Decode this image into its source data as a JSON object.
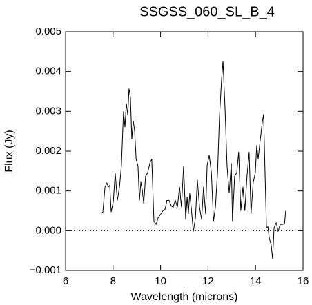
{
  "chart_data": {
    "type": "line",
    "title": "SSGSS_060_SL_B_4",
    "x_label": "Wavelength (microns)",
    "y_label": "Flux (Jy)",
    "x": [
      7.48,
      7.57,
      7.66,
      7.74,
      7.8,
      7.86,
      7.92,
      8.01,
      8.09,
      8.18,
      8.27,
      8.35,
      8.44,
      8.5,
      8.56,
      8.62,
      8.67,
      8.73,
      8.79,
      8.85,
      8.91,
      8.97,
      9.05,
      9.11,
      9.17,
      9.23,
      9.29,
      9.37,
      9.46,
      9.55,
      9.63,
      9.72,
      9.81,
      9.9,
      10.01,
      10.1,
      10.19,
      10.27,
      10.36,
      10.45,
      10.53,
      10.62,
      10.71,
      10.8,
      10.88,
      10.97,
      11.06,
      11.12,
      11.17,
      11.23,
      11.29,
      11.38,
      11.47,
      11.55,
      11.64,
      11.73,
      11.81,
      11.9,
      11.96,
      12.05,
      12.14,
      12.23,
      12.31,
      12.4,
      12.48,
      12.57,
      12.63,
      12.72,
      12.8,
      12.89,
      12.98,
      13.03,
      13.12,
      13.21,
      13.29,
      13.38,
      13.47,
      13.55,
      13.64,
      13.73,
      13.81,
      13.9,
      13.99,
      14.05,
      14.11,
      14.19,
      14.28,
      14.34,
      14.4,
      14.46,
      14.52,
      14.58,
      14.66,
      14.72,
      14.78,
      14.87,
      14.95,
      15.04,
      15.13,
      15.22,
      15.27
    ],
    "series": [
      {
        "color": "#000000",
        "values": [
          0.00043,
          0.00047,
          0.0011,
          0.0012,
          0.0011,
          0.00114,
          0.00047,
          0.00073,
          0.00145,
          0.00076,
          0.0011,
          0.00163,
          0.003,
          0.0026,
          0.0032,
          0.0029,
          0.00357,
          0.00336,
          0.0023,
          0.00276,
          0.0025,
          0.0018,
          0.00163,
          0.00076,
          0.00123,
          0.00102,
          0.00068,
          0.00137,
          0.00146,
          0.0017,
          0.0018,
          0.00024,
          0.00016,
          0.00033,
          0.00042,
          0.0005,
          0.00054,
          0.00076,
          0.00076,
          0.00062,
          0.00059,
          0.00076,
          0.00059,
          0.0011,
          0.00059,
          0.00163,
          0.00028,
          0.00085,
          0.00042,
          0.00094,
          0.00059,
          -2e-05,
          0.00033,
          0.00128,
          0.00059,
          0.00028,
          0.0011,
          0.00042,
          0.00163,
          0.0019,
          0.00146,
          0.00024,
          0.00059,
          0.00146,
          0.00284,
          0.0038,
          0.00426,
          0.003,
          0.00163,
          0.00094,
          0.0017,
          0.00024,
          0.00137,
          0.00146,
          0.00198,
          0.0005,
          0.0011,
          0.0005,
          0.00137,
          0.00198,
          0.00042,
          0.0012,
          0.00146,
          0.00215,
          0.0018,
          0.00224,
          0.0027,
          0.00293,
          0.00146,
          7e-05,
          0.0001,
          -0.00019,
          -0.00036,
          -0.00071,
          7e-05,
          0.0002,
          -2e-05,
          0.00016,
          0.00016,
          0.00017,
          0.0005
        ]
      }
    ],
    "xlim": [
      6,
      16
    ],
    "xticks": [
      6,
      8,
      10,
      12,
      14,
      16
    ],
    "ylim": [
      -0.001,
      0.005
    ],
    "yticks": [
      {
        "value": -0.001,
        "label": "−0.001"
      },
      {
        "value": 0,
        "label": "0.000"
      },
      {
        "value": 0.001,
        "label": "0.001"
      },
      {
        "value": 0.002,
        "label": "0.002"
      },
      {
        "value": 0.003,
        "label": "0.003"
      },
      {
        "value": 0.004,
        "label": "0.004"
      },
      {
        "value": 0.005,
        "label": "0.005"
      }
    ],
    "zero_line": true
  }
}
